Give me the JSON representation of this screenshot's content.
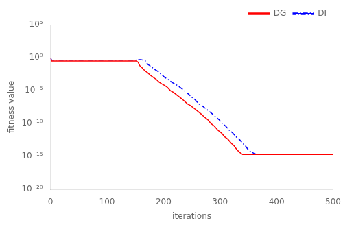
{
  "chart_data": {
    "type": "line",
    "xlabel": "iterations",
    "ylabel": "fitness value",
    "log": "y",
    "grid": false,
    "legend": "upper right",
    "xlim": [
      0,
      500
    ],
    "xticks": [
      0,
      100,
      200,
      300,
      400,
      500
    ],
    "ylim": [
      1e-20,
      100000.0
    ],
    "yticks": [
      {
        "value": 1e-20,
        "label": "10⁻²⁰"
      },
      {
        "value": 1e-15,
        "label": "10⁻¹⁵"
      },
      {
        "value": 1e-10,
        "label": "10⁻¹⁰"
      },
      {
        "value": 1e-05,
        "label": "10⁻⁵"
      },
      {
        "value": 1,
        "label": "10⁰"
      },
      {
        "value": 100000.0,
        "label": "10⁵"
      }
    ],
    "series": [
      {
        "name": "DG",
        "color": "#ff0000",
        "line_style": "solid",
        "x": [
          0,
          2,
          5,
          10,
          20,
          50,
          80,
          100,
          130,
          150,
          152,
          155,
          158,
          162,
          167,
          172,
          177,
          182,
          187,
          192,
          197,
          202,
          207,
          212,
          218,
          224,
          230,
          236,
          242,
          248,
          254,
          260,
          266,
          272,
          278,
          284,
          290,
          296,
          302,
          308,
          314,
          320,
          325,
          330,
          335,
          340,
          341,
          500
        ],
        "values": [
          1.0,
          0.3,
          0.3,
          0.3,
          0.3,
          0.3,
          0.3,
          0.3,
          0.3,
          0.3,
          0.3,
          0.2,
          0.06,
          0.03,
          0.01,
          0.005,
          0.002,
          0.001,
          0.0005,
          0.0002,
          0.0001,
          6e-05,
          3e-05,
          1e-05,
          5e-06,
          2e-06,
          8e-07,
          3e-07,
          1e-07,
          5e-08,
          2e-08,
          8e-09,
          3e-09,
          1e-09,
          4e-10,
          1e-10,
          4e-11,
          1e-11,
          4e-12,
          1e-12,
          4e-13,
          1e-13,
          4e-14,
          1e-14,
          4e-15,
          2e-15,
          2e-15,
          2e-15
        ]
      },
      {
        "name": "DI",
        "color": "#0000ff",
        "line_style": "dashdot",
        "x": [
          0,
          2,
          5,
          10,
          20,
          50,
          80,
          100,
          130,
          150,
          155,
          160,
          165,
          168,
          172,
          177,
          183,
          190,
          196,
          202,
          208,
          214,
          220,
          226,
          232,
          238,
          244,
          250,
          256,
          262,
          268,
          274,
          280,
          286,
          292,
          298,
          304,
          310,
          316,
          322,
          328,
          334,
          340,
          345,
          350,
          355,
          360,
          365,
          370,
          371,
          500
        ],
        "values": [
          1.0,
          0.4,
          0.4,
          0.4,
          0.4,
          0.4,
          0.4,
          0.4,
          0.4,
          0.4,
          0.5,
          0.5,
          0.4,
          0.3,
          0.1,
          0.05,
          0.02,
          0.008,
          0.003,
          0.001,
          0.0005,
          0.0002,
          0.0001,
          5e-05,
          2e-05,
          8e-06,
          3e-06,
          1e-06,
          4e-07,
          1e-07,
          5e-08,
          2e-08,
          8e-09,
          3e-09,
          1e-09,
          4e-10,
          1e-10,
          4e-11,
          1e-11,
          4e-12,
          1e-12,
          4e-13,
          1e-13,
          4e-14,
          1e-14,
          5e-15,
          3e-15,
          2e-15,
          2e-15,
          2e-15,
          2e-15
        ]
      }
    ]
  }
}
